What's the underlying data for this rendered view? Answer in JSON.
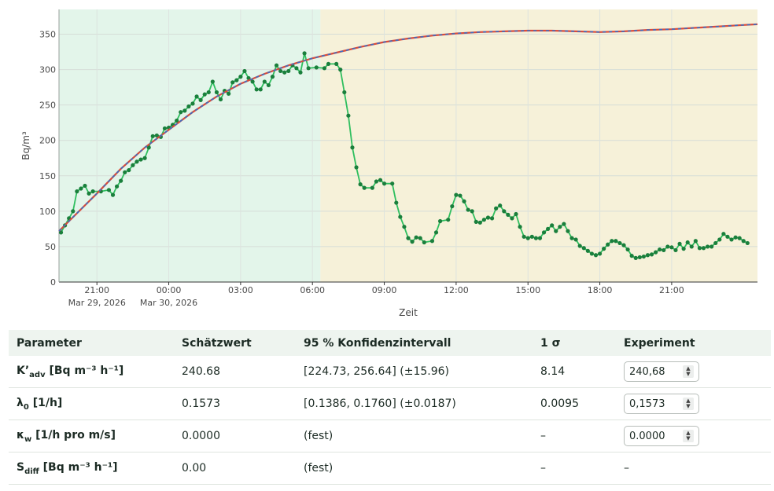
{
  "chart_data": {
    "type": "line",
    "xlabel": "Zeit",
    "ylabel": "Bq/m³",
    "x_range": [
      "2026-03-29 19:25",
      "2026-03-31 00:35"
    ],
    "ylim": [
      0,
      385
    ],
    "yticks": [
      0,
      50,
      100,
      150,
      200,
      250,
      300,
      350
    ],
    "xticks": [
      {
        "t": "2026-03-29 21:00",
        "label": "21:00",
        "date": "Mar 29, 2026"
      },
      {
        "t": "2026-03-30 00:00",
        "label": "00:00",
        "date": "Mar 30, 2026"
      },
      {
        "t": "2026-03-30 03:00",
        "label": "03:00",
        "date": ""
      },
      {
        "t": "2026-03-30 06:00",
        "label": "06:00",
        "date": ""
      },
      {
        "t": "2026-03-30 09:00",
        "label": "09:00",
        "date": ""
      },
      {
        "t": "2026-03-30 12:00",
        "label": "12:00",
        "date": ""
      },
      {
        "t": "2026-03-30 15:00",
        "label": "15:00",
        "date": ""
      },
      {
        "t": "2026-03-30 18:00",
        "label": "18:00",
        "date": ""
      },
      {
        "t": "2026-03-30 21:00",
        "label": "21:00",
        "date": ""
      }
    ],
    "grid": true,
    "regions": [
      {
        "from": "2026-03-29 19:25",
        "to": "2026-03-30 06:20",
        "color": "#e3f5ea"
      },
      {
        "from": "2026-03-30 06:20",
        "to": "2026-03-31 00:35",
        "color": "#f6f1d9"
      }
    ],
    "series": [
      {
        "color": "#2fbf5f",
        "marker_color": "#1a7f3c",
        "points": [
          [
            "2026-03-29 19:30",
            70
          ],
          [
            "2026-03-29 19:40",
            80
          ],
          [
            "2026-03-29 19:50",
            90
          ],
          [
            "2026-03-29 20:00",
            100
          ],
          [
            "2026-03-29 20:10",
            128
          ],
          [
            "2026-03-29 20:20",
            132
          ],
          [
            "2026-03-29 20:30",
            136
          ],
          [
            "2026-03-29 20:40",
            125
          ],
          [
            "2026-03-29 20:50",
            128
          ],
          [
            "2026-03-29 21:10",
            128
          ],
          [
            "2026-03-29 21:30",
            130
          ],
          [
            "2026-03-29 21:40",
            123
          ],
          [
            "2026-03-29 21:50",
            135
          ],
          [
            "2026-03-29 22:00",
            143
          ],
          [
            "2026-03-29 22:10",
            155
          ],
          [
            "2026-03-29 22:20",
            158
          ],
          [
            "2026-03-29 22:30",
            165
          ],
          [
            "2026-03-29 22:40",
            170
          ],
          [
            "2026-03-29 22:50",
            173
          ],
          [
            "2026-03-29 23:00",
            175
          ],
          [
            "2026-03-29 23:10",
            190
          ],
          [
            "2026-03-29 23:20",
            206
          ],
          [
            "2026-03-29 23:30",
            207
          ],
          [
            "2026-03-29 23:40",
            205
          ],
          [
            "2026-03-29 23:50",
            217
          ],
          [
            "2026-03-30 00:00",
            218
          ],
          [
            "2026-03-30 00:10",
            222
          ],
          [
            "2026-03-30 00:20",
            228
          ],
          [
            "2026-03-30 00:30",
            240
          ],
          [
            "2026-03-30 00:40",
            242
          ],
          [
            "2026-03-30 00:50",
            248
          ],
          [
            "2026-03-30 01:00",
            252
          ],
          [
            "2026-03-30 01:10",
            262
          ],
          [
            "2026-03-30 01:20",
            257
          ],
          [
            "2026-03-30 01:30",
            265
          ],
          [
            "2026-03-30 01:40",
            268
          ],
          [
            "2026-03-30 01:50",
            283
          ],
          [
            "2026-03-30 02:00",
            268
          ],
          [
            "2026-03-30 02:10",
            258
          ],
          [
            "2026-03-30 02:20",
            270
          ],
          [
            "2026-03-30 02:30",
            266
          ],
          [
            "2026-03-30 02:40",
            282
          ],
          [
            "2026-03-30 02:50",
            285
          ],
          [
            "2026-03-30 03:00",
            290
          ],
          [
            "2026-03-30 03:10",
            298
          ],
          [
            "2026-03-30 03:20",
            288
          ],
          [
            "2026-03-30 03:30",
            283
          ],
          [
            "2026-03-30 03:40",
            272
          ],
          [
            "2026-03-30 03:50",
            272
          ],
          [
            "2026-03-30 04:00",
            283
          ],
          [
            "2026-03-30 04:10",
            278
          ],
          [
            "2026-03-30 04:20",
            290
          ],
          [
            "2026-03-30 04:30",
            306
          ],
          [
            "2026-03-30 04:40",
            298
          ],
          [
            "2026-03-30 04:50",
            296
          ],
          [
            "2026-03-30 05:00",
            298
          ],
          [
            "2026-03-30 05:10",
            306
          ],
          [
            "2026-03-30 05:20",
            302
          ],
          [
            "2026-03-30 05:30",
            296
          ],
          [
            "2026-03-30 05:40",
            323
          ],
          [
            "2026-03-30 05:50",
            302
          ],
          [
            "2026-03-30 06:10",
            303
          ],
          [
            "2026-03-30 06:30",
            302
          ],
          [
            "2026-03-30 06:40",
            308
          ],
          [
            "2026-03-30 07:00",
            308
          ],
          [
            "2026-03-30 07:10",
            300
          ],
          [
            "2026-03-30 07:20",
            268
          ],
          [
            "2026-03-30 07:30",
            235
          ],
          [
            "2026-03-30 07:40",
            190
          ],
          [
            "2026-03-30 07:50",
            162
          ],
          [
            "2026-03-30 08:00",
            138
          ],
          [
            "2026-03-30 08:10",
            133
          ],
          [
            "2026-03-30 08:30",
            133
          ],
          [
            "2026-03-30 08:40",
            142
          ],
          [
            "2026-03-30 08:50",
            144
          ],
          [
            "2026-03-30 09:00",
            139
          ],
          [
            "2026-03-30 09:20",
            139
          ],
          [
            "2026-03-30 09:30",
            112
          ],
          [
            "2026-03-30 09:40",
            92
          ],
          [
            "2026-03-30 09:50",
            78
          ],
          [
            "2026-03-30 10:00",
            62
          ],
          [
            "2026-03-30 10:10",
            57
          ],
          [
            "2026-03-30 10:20",
            63
          ],
          [
            "2026-03-30 10:30",
            62
          ],
          [
            "2026-03-30 10:40",
            56
          ],
          [
            "2026-03-30 11:00",
            58
          ],
          [
            "2026-03-30 11:10",
            70
          ],
          [
            "2026-03-30 11:20",
            86
          ],
          [
            "2026-03-30 11:40",
            88
          ],
          [
            "2026-03-30 11:50",
            107
          ],
          [
            "2026-03-30 12:00",
            123
          ],
          [
            "2026-03-30 12:10",
            122
          ],
          [
            "2026-03-30 12:20",
            114
          ],
          [
            "2026-03-30 12:30",
            102
          ],
          [
            "2026-03-30 12:40",
            100
          ],
          [
            "2026-03-30 12:50",
            85
          ],
          [
            "2026-03-30 13:00",
            84
          ],
          [
            "2026-03-30 13:10",
            88
          ],
          [
            "2026-03-30 13:20",
            91
          ],
          [
            "2026-03-30 13:30",
            90
          ],
          [
            "2026-03-30 13:40",
            104
          ],
          [
            "2026-03-30 13:50",
            108
          ],
          [
            "2026-03-30 14:00",
            100
          ],
          [
            "2026-03-30 14:10",
            95
          ],
          [
            "2026-03-30 14:20",
            90
          ],
          [
            "2026-03-30 14:30",
            96
          ],
          [
            "2026-03-30 14:40",
            78
          ],
          [
            "2026-03-30 14:50",
            64
          ],
          [
            "2026-03-30 15:00",
            62
          ],
          [
            "2026-03-30 15:10",
            64
          ],
          [
            "2026-03-30 15:20",
            62
          ],
          [
            "2026-03-30 15:30",
            62
          ],
          [
            "2026-03-30 15:40",
            70
          ],
          [
            "2026-03-30 15:50",
            75
          ],
          [
            "2026-03-30 16:00",
            80
          ],
          [
            "2026-03-30 16:10",
            72
          ],
          [
            "2026-03-30 16:20",
            78
          ],
          [
            "2026-03-30 16:30",
            82
          ],
          [
            "2026-03-30 16:40",
            72
          ],
          [
            "2026-03-30 16:50",
            62
          ],
          [
            "2026-03-30 17:00",
            60
          ],
          [
            "2026-03-30 17:10",
            51
          ],
          [
            "2026-03-30 17:20",
            48
          ],
          [
            "2026-03-30 17:30",
            44
          ],
          [
            "2026-03-30 17:40",
            40
          ],
          [
            "2026-03-30 17:50",
            38
          ],
          [
            "2026-03-30 18:00",
            40
          ],
          [
            "2026-03-30 18:10",
            47
          ],
          [
            "2026-03-30 18:20",
            53
          ],
          [
            "2026-03-30 18:30",
            58
          ],
          [
            "2026-03-30 18:40",
            58
          ],
          [
            "2026-03-30 18:50",
            55
          ],
          [
            "2026-03-30 19:00",
            52
          ],
          [
            "2026-03-30 19:10",
            46
          ],
          [
            "2026-03-30 19:20",
            37
          ],
          [
            "2026-03-30 19:30",
            34
          ],
          [
            "2026-03-30 19:40",
            35
          ],
          [
            "2026-03-30 19:50",
            36
          ],
          [
            "2026-03-30 20:00",
            38
          ],
          [
            "2026-03-30 20:10",
            39
          ],
          [
            "2026-03-30 20:20",
            42
          ],
          [
            "2026-03-30 20:30",
            46
          ],
          [
            "2026-03-30 20:40",
            45
          ],
          [
            "2026-03-30 20:50",
            50
          ],
          [
            "2026-03-30 21:00",
            49
          ],
          [
            "2026-03-30 21:10",
            45
          ],
          [
            "2026-03-30 21:20",
            54
          ],
          [
            "2026-03-30 21:30",
            47
          ],
          [
            "2026-03-30 21:40",
            56
          ],
          [
            "2026-03-30 21:50",
            50
          ],
          [
            "2026-03-30 22:00",
            58
          ],
          [
            "2026-03-30 22:10",
            48
          ],
          [
            "2026-03-30 22:20",
            48
          ],
          [
            "2026-03-30 22:30",
            50
          ],
          [
            "2026-03-30 22:40",
            50
          ],
          [
            "2026-03-30 22:50",
            55
          ],
          [
            "2026-03-30 23:00",
            60
          ],
          [
            "2026-03-30 23:10",
            68
          ],
          [
            "2026-03-30 23:20",
            64
          ],
          [
            "2026-03-30 23:30",
            60
          ],
          [
            "2026-03-30 23:40",
            63
          ],
          [
            "2026-03-30 23:50",
            62
          ],
          [
            "2026-03-31 00:00",
            58
          ],
          [
            "2026-03-31 00:10",
            55
          ]
        ]
      },
      {
        "color": "#d94b3b",
        "overlay_color": "#3b6fc4",
        "points": [
          [
            "2026-03-29 19:25",
            72
          ],
          [
            "2026-03-29 21:00",
            125
          ],
          [
            "2026-03-29 22:00",
            160
          ],
          [
            "2026-03-29 23:00",
            190
          ],
          [
            "2026-03-30 00:00",
            215
          ],
          [
            "2026-03-30 01:00",
            240
          ],
          [
            "2026-03-30 02:00",
            262
          ],
          [
            "2026-03-30 03:00",
            280
          ],
          [
            "2026-03-30 04:00",
            294
          ],
          [
            "2026-03-30 05:00",
            306
          ],
          [
            "2026-03-30 06:00",
            316
          ],
          [
            "2026-03-30 07:00",
            324
          ],
          [
            "2026-03-30 08:00",
            332
          ],
          [
            "2026-03-30 09:00",
            339
          ],
          [
            "2026-03-30 10:00",
            344
          ],
          [
            "2026-03-30 11:00",
            348
          ],
          [
            "2026-03-30 12:00",
            351
          ],
          [
            "2026-03-30 13:00",
            353
          ],
          [
            "2026-03-30 14:00",
            354
          ],
          [
            "2026-03-30 15:00",
            355
          ],
          [
            "2026-03-30 16:00",
            355
          ],
          [
            "2026-03-30 17:00",
            354
          ],
          [
            "2026-03-30 18:00",
            353
          ],
          [
            "2026-03-30 19:00",
            354
          ],
          [
            "2026-03-30 20:00",
            356
          ],
          [
            "2026-03-30 21:00",
            357
          ],
          [
            "2026-03-30 22:00",
            359
          ],
          [
            "2026-03-30 23:00",
            361
          ],
          [
            "2026-03-31 00:00",
            363
          ],
          [
            "2026-03-31 00:35",
            364
          ]
        ]
      }
    ]
  },
  "table": {
    "headers": [
      "Parameter",
      "Schätzwert",
      "95 % Konfidenzintervall",
      "1 σ",
      "Experiment"
    ],
    "rows": [
      {
        "name_main": "K’",
        "name_sub": "adv",
        "name_rest": " [Bq m⁻³ h⁻¹]",
        "estimate": "240.68",
        "ci": "[224.73, 256.64] (±15.96)",
        "sigma": "8.14",
        "experiment": "240,68",
        "has_input": true
      },
      {
        "name_main": "λ",
        "name_sub": "0",
        "name_rest": " [1/h]",
        "estimate": "0.1573",
        "ci": "[0.1386, 0.1760] (±0.0187)",
        "sigma": "0.0095",
        "experiment": "0,1573",
        "has_input": true
      },
      {
        "name_main": "κ",
        "name_sub": "w",
        "name_rest": " [1/h pro m/s]",
        "estimate": "0.0000",
        "ci": "(fest)",
        "sigma": "–",
        "experiment": "0.0000",
        "has_input": true
      },
      {
        "name_main": "S",
        "name_sub": "diff",
        "name_rest": " [Bq m⁻³ h⁻¹]",
        "estimate": "0.00",
        "ci": "(fest)",
        "sigma": "–",
        "experiment": "–",
        "has_input": false
      }
    ]
  }
}
